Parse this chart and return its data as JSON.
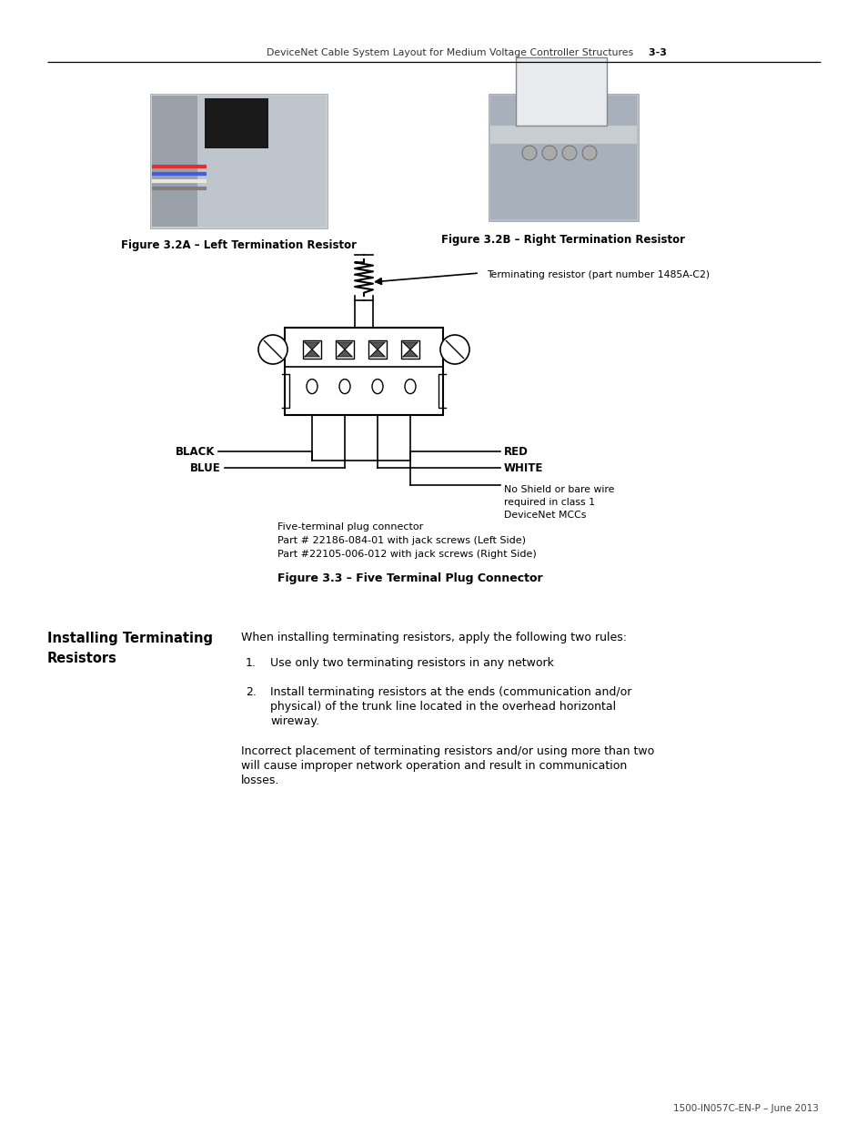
{
  "page_header": "DeviceNet Cable System Layout for Medium Voltage Controller Structures",
  "page_number": "3-3",
  "fig_3_2A_caption": "Figure 3.2A – Left Termination Resistor",
  "fig_3_2B_caption": "Figure 3.2B – Right Termination Resistor",
  "terminating_resistor_label": "Terminating resistor (part number 1485A-C2)",
  "wire_BLACK": "BLACK",
  "wire_BLUE": "BLUE",
  "wire_RED": "RED",
  "wire_WHITE": "WHITE",
  "wire_no_shield": "No Shield or bare wire\nrequired in class 1\nDeviceNet MCCs",
  "connector_caption_line1": "Five-terminal plug connector",
  "connector_caption_line2": "Part # 22186-084-01 with jack screws (Left Side)",
  "connector_caption_line3": "Part #22105-006-012 with jack screws (Right Side)",
  "fig_3_3_caption": "Figure 3.3 – Five Terminal Plug Connector",
  "section_heading_line1": "Installing Terminating",
  "section_heading_line2": "Resistors",
  "intro_text": "When installing terminating resistors, apply the following two rules:",
  "rule1": "Use only two terminating resistors in any network",
  "rule2_line1": "Install terminating resistors at the ends (communication and/or",
  "rule2_line2": "physical) of the trunk line located in the overhead horizontal",
  "rule2_line3": "wireway.",
  "closing_line1": "Incorrect placement of terminating resistors and/or using more than two",
  "closing_line2": "will cause improper network operation and result in communication",
  "closing_line3": "losses.",
  "footer": "1500-IN057C-EN-P – June 2013",
  "bg_color": "#ffffff",
  "text_color": "#000000"
}
